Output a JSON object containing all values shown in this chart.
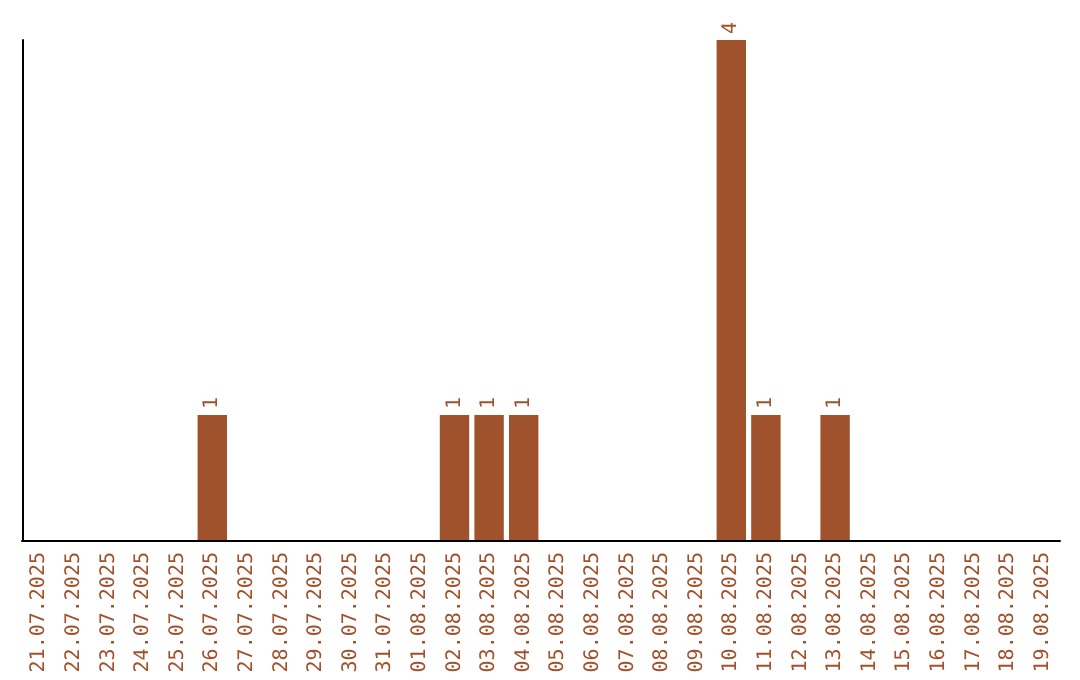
{
  "chart_data": {
    "type": "bar",
    "categories": [
      "21.07.2025",
      "22.07.2025",
      "23.07.2025",
      "24.07.2025",
      "25.07.2025",
      "26.07.2025",
      "27.07.2025",
      "28.07.2025",
      "29.07.2025",
      "30.07.2025",
      "31.07.2025",
      "01.08.2025",
      "02.08.2025",
      "03.08.2025",
      "04.08.2025",
      "05.08.2025",
      "06.08.2025",
      "07.08.2025",
      "08.08.2025",
      "09.08.2025",
      "10.08.2025",
      "11.08.2025",
      "12.08.2025",
      "13.08.2025",
      "14.08.2025",
      "15.08.2025",
      "16.08.2025",
      "17.08.2025",
      "18.08.2025",
      "19.08.2025"
    ],
    "values": [
      0,
      0,
      0,
      0,
      0,
      1,
      0,
      0,
      0,
      0,
      0,
      0,
      1,
      1,
      1,
      0,
      0,
      0,
      0,
      0,
      4,
      1,
      0,
      1,
      0,
      0,
      0,
      0,
      0,
      0
    ],
    "value_labels": [
      null,
      null,
      null,
      null,
      null,
      "1",
      null,
      null,
      null,
      null,
      null,
      null,
      "1",
      "1",
      "1",
      null,
      null,
      null,
      null,
      null,
      "4",
      "1",
      null,
      "1",
      null,
      null,
      null,
      null,
      null,
      null
    ],
    "color": "#a0522d",
    "tick_labels": "x"
  }
}
